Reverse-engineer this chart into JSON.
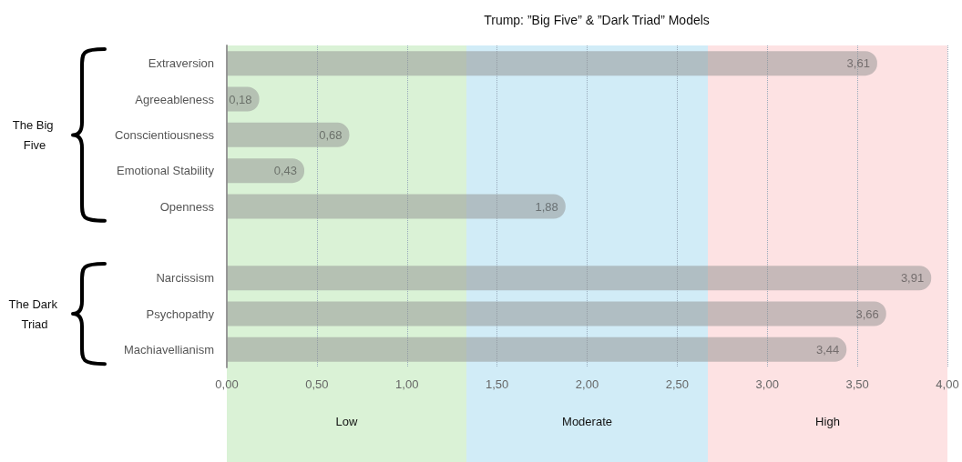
{
  "chart_data": {
    "type": "bar",
    "orientation": "horizontal",
    "title": "Trump: ”Big Five” & ”Dark Triad” Models",
    "categories": [
      "Extraversion",
      "Agreeableness",
      "Conscientiousness",
      "Emotional Stability",
      "Openness",
      null,
      "Narcissism",
      "Psychopathy",
      "Machiavellianism"
    ],
    "values": [
      3.61,
      0.18,
      0.68,
      0.43,
      1.88,
      null,
      3.91,
      3.66,
      3.44
    ],
    "value_labels": [
      "3,61",
      "0,18",
      "0,68",
      "0,43",
      "1,88",
      null,
      "3,91",
      "3,66",
      "3,44"
    ],
    "color": "#8f8f8f",
    "xlim": [
      0,
      4
    ],
    "xticks": [
      {
        "value": 0,
        "label": "0,00"
      },
      {
        "value": 0.5,
        "label": "0,50"
      },
      {
        "value": 1,
        "label": "1,00"
      },
      {
        "value": 1.5,
        "label": "1,50"
      },
      {
        "value": 2,
        "label": "2,00"
      },
      {
        "value": 2.5,
        "label": "2,50"
      },
      {
        "value": 3,
        "label": "3,00"
      },
      {
        "value": 3.5,
        "label": "3,50"
      },
      {
        "value": 4,
        "label": "4,00"
      }
    ],
    "grid": "x",
    "bands": [
      {
        "axis": "x",
        "from": 0,
        "to": 1.33,
        "label": "Low",
        "color": "#daf2d6"
      },
      {
        "axis": "x",
        "from": 1.33,
        "to": 2.67,
        "label": "Moderate",
        "color": "#d1ecf7"
      },
      {
        "axis": "x",
        "from": 2.67,
        "to": 4,
        "label": "High",
        "color": "#fde2e3"
      }
    ],
    "annotations": [
      "The Big Five",
      "The Dark Triad"
    ]
  }
}
